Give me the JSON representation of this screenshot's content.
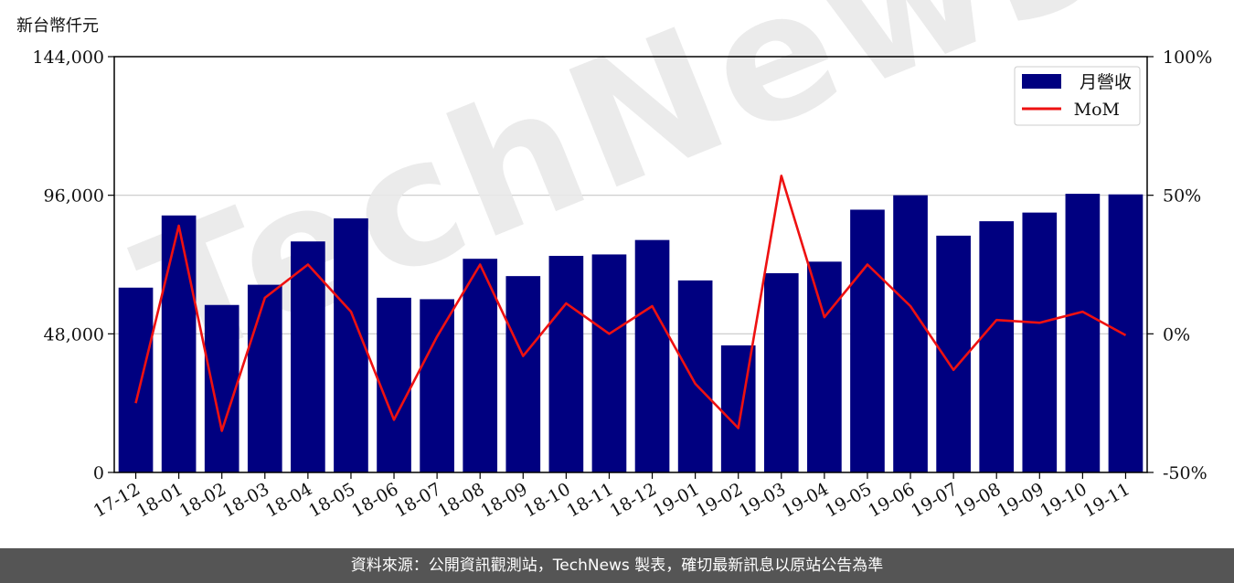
{
  "unit_label": "新台幣仟元",
  "footer_text": "資料來源：公開資訊觀測站，TechNews 製表，確切最新訊息以原站公告為準",
  "watermark": "TechNews",
  "colors": {
    "bar": "#000080",
    "line": "#ee1111",
    "grid": "#c8c8c8",
    "footer_bg": "#555555"
  },
  "chart_data": {
    "type": "bar",
    "categories": [
      "17-12",
      "18-01",
      "18-02",
      "18-03",
      "18-04",
      "18-05",
      "18-06",
      "18-07",
      "18-08",
      "18-09",
      "18-10",
      "18-11",
      "18-12",
      "19-01",
      "19-02",
      "19-03",
      "19-04",
      "19-05",
      "19-06",
      "19-07",
      "19-08",
      "19-09",
      "19-10",
      "19-11"
    ],
    "series": [
      {
        "name": "月營收",
        "type": "bar",
        "axis": "left",
        "values": [
          64000,
          89000,
          58000,
          65000,
          80000,
          88000,
          60500,
          60000,
          74000,
          68000,
          75000,
          75500,
          80500,
          66500,
          44000,
          69000,
          73000,
          91000,
          96000,
          82000,
          87000,
          90000,
          96500,
          96300
        ]
      },
      {
        "name": "MoM",
        "type": "line",
        "axis": "right",
        "values": [
          -25,
          39,
          -35,
          13,
          25,
          8,
          -31,
          -1,
          25,
          -8,
          11,
          0,
          10,
          -18,
          -34,
          57,
          6,
          25,
          10,
          -13,
          5,
          4,
          8,
          -0.5
        ]
      }
    ],
    "y_left": {
      "ylim": [
        0,
        144000
      ],
      "ticks": [
        "0",
        "48,000",
        "96,000",
        "144,000"
      ],
      "tick_values": [
        0,
        48000,
        96000,
        144000
      ]
    },
    "y_right": {
      "ylim": [
        -50,
        100
      ],
      "ticks": [
        "-50%",
        "0%",
        "50%",
        "100%"
      ],
      "tick_values": [
        -50,
        0,
        50,
        100
      ]
    },
    "grid": "horizontal",
    "legend_placement": "top-right"
  }
}
